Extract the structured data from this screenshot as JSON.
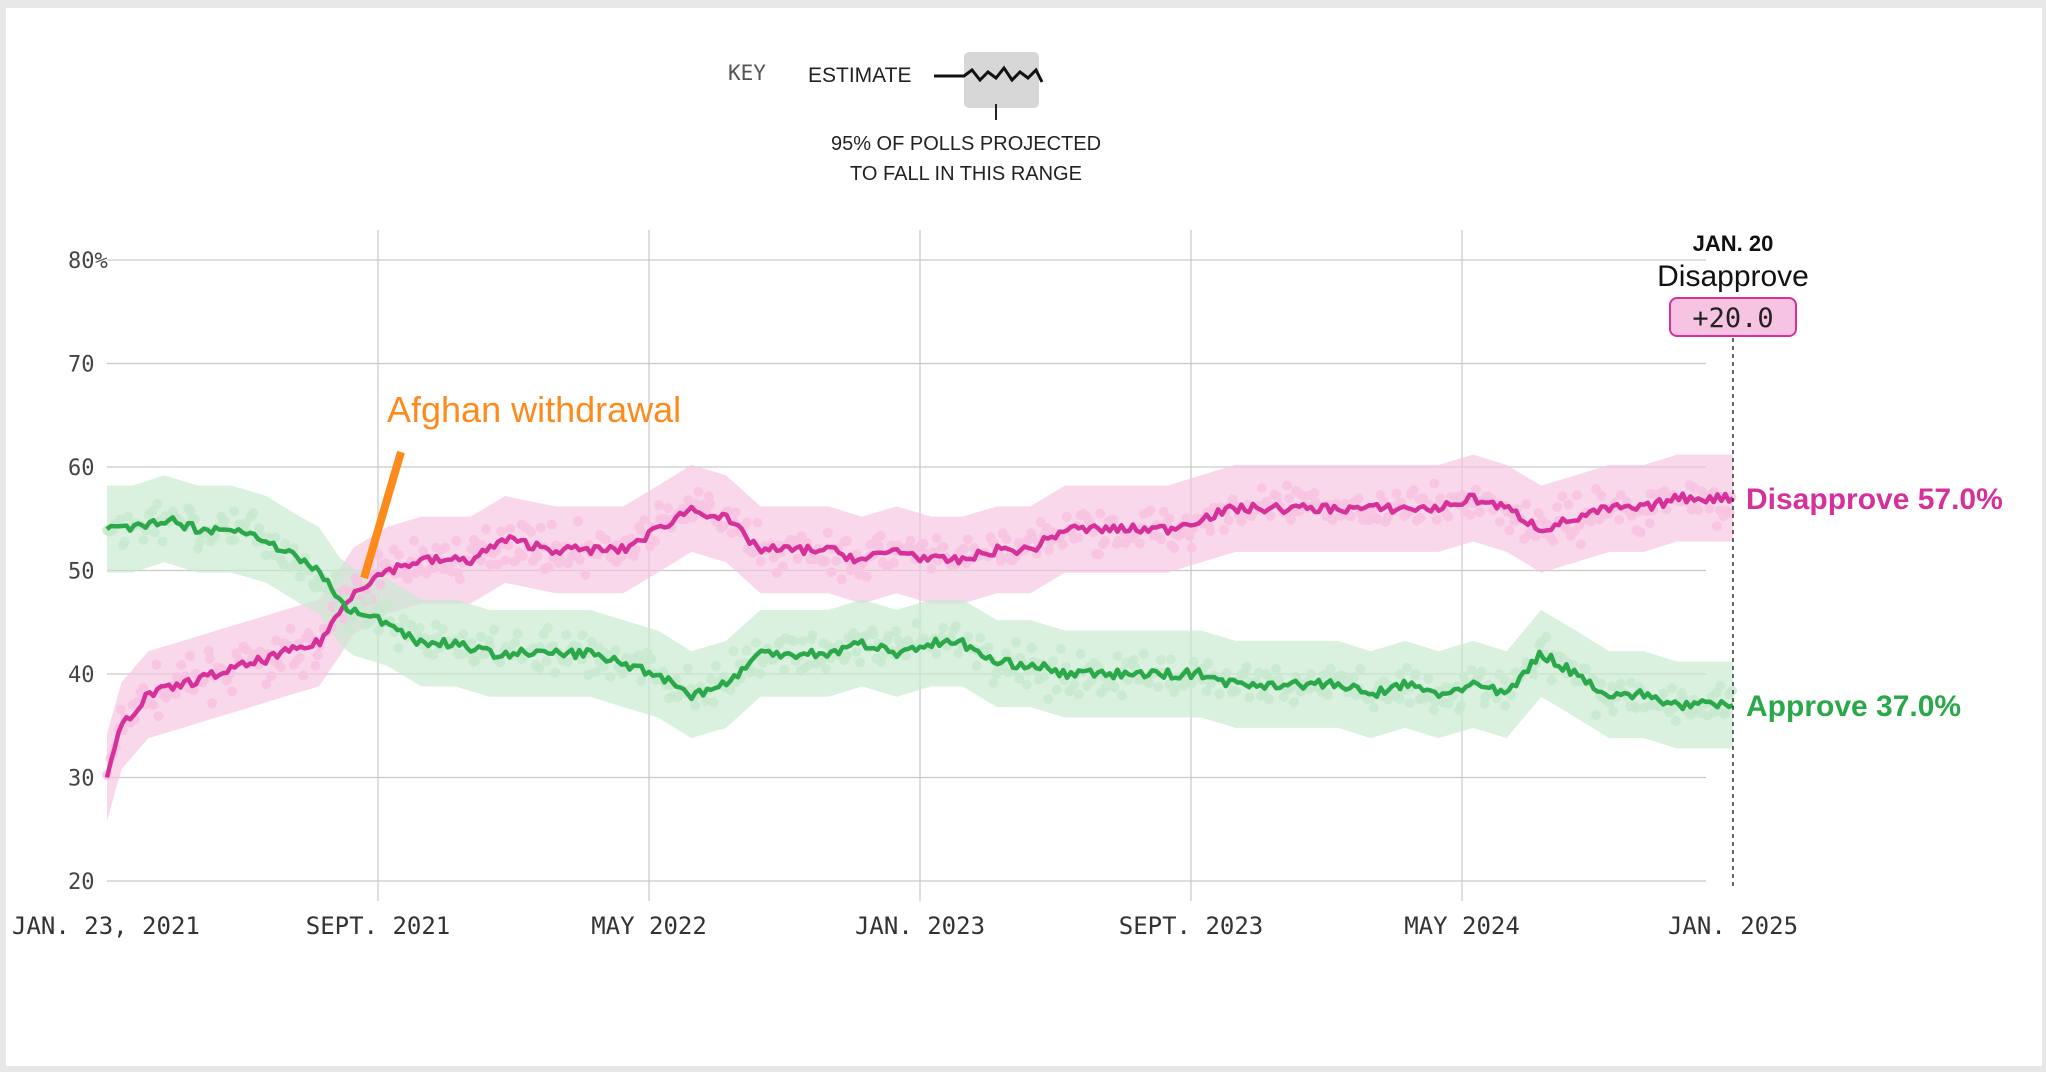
{
  "key": {
    "label": "KEY",
    "estimate_label": "ESTIMATE",
    "range_caption_line1": "95% OF POLLS PROJECTED",
    "range_caption_line2": "TO FALL IN THIS RANGE"
  },
  "marker": {
    "date_label": "JAN. 20",
    "series_label": "Disapprove",
    "margin_value": "+20.0"
  },
  "annotation": "Afghan withdrawal",
  "colors": {
    "approve": "#2aa84a",
    "approve_light": "#c8e9cf",
    "disapprove": "#d6309b",
    "disapprove_light": "#f7c3e2",
    "annotation": "#ff8a1c",
    "grid": "#c9c9c9"
  },
  "chart_data": {
    "type": "line",
    "y_ticks": [
      "80%",
      "70",
      "60",
      "50",
      "40",
      "30",
      "20"
    ],
    "x_ticks": [
      "JAN. 23, 2021",
      "SEPT. 2021",
      "MAY 2022",
      "JAN. 2023",
      "SEPT. 2023",
      "MAY 2024",
      "JAN. 2025"
    ],
    "ylim": [
      20,
      80
    ],
    "xlim": [
      "2021-01-23",
      "2025-01-20"
    ],
    "series": [
      {
        "name": "Disapprove",
        "end_label": "Disapprove 57.0%",
        "values": [
          [
            "2021-01-23",
            30
          ],
          [
            "2021-02-05",
            35
          ],
          [
            "2021-03-01",
            38
          ],
          [
            "2021-04-01",
            39
          ],
          [
            "2021-05-01",
            40
          ],
          [
            "2021-06-01",
            41
          ],
          [
            "2021-07-01",
            42
          ],
          [
            "2021-08-01",
            43
          ],
          [
            "2021-08-20",
            46
          ],
          [
            "2021-09-01",
            48
          ],
          [
            "2021-10-01",
            50
          ],
          [
            "2021-11-01",
            51
          ],
          [
            "2021-12-15",
            51
          ],
          [
            "2022-01-15",
            53
          ],
          [
            "2022-03-01",
            52
          ],
          [
            "2022-04-01",
            52
          ],
          [
            "2022-05-01",
            52
          ],
          [
            "2022-06-01",
            54
          ],
          [
            "2022-07-01",
            56
          ],
          [
            "2022-08-01",
            55
          ],
          [
            "2022-09-01",
            52
          ],
          [
            "2022-10-01",
            52
          ],
          [
            "2022-11-01",
            52
          ],
          [
            "2022-12-01",
            51
          ],
          [
            "2023-01-01",
            52
          ],
          [
            "2023-02-01",
            51
          ],
          [
            "2023-03-01",
            51
          ],
          [
            "2023-04-01",
            52
          ],
          [
            "2023-05-01",
            52
          ],
          [
            "2023-06-01",
            54
          ],
          [
            "2023-07-01",
            54
          ],
          [
            "2023-08-01",
            54
          ],
          [
            "2023-09-01",
            54
          ],
          [
            "2023-10-01",
            55
          ],
          [
            "2023-11-01",
            56
          ],
          [
            "2023-12-01",
            56
          ],
          [
            "2024-01-01",
            56
          ],
          [
            "2024-02-01",
            56
          ],
          [
            "2024-03-01",
            56
          ],
          [
            "2024-04-01",
            56
          ],
          [
            "2024-05-01",
            56
          ],
          [
            "2024-06-01",
            57
          ],
          [
            "2024-07-01",
            56
          ],
          [
            "2024-08-01",
            54
          ],
          [
            "2024-09-01",
            55
          ],
          [
            "2024-10-01",
            56
          ],
          [
            "2024-11-01",
            56
          ],
          [
            "2024-12-01",
            57
          ],
          [
            "2025-01-20",
            57
          ]
        ]
      },
      {
        "name": "Approve",
        "end_label": "Approve 37.0%",
        "values": [
          [
            "2021-01-23",
            54
          ],
          [
            "2021-02-15",
            54
          ],
          [
            "2021-03-15",
            55
          ],
          [
            "2021-04-15",
            54
          ],
          [
            "2021-05-15",
            54
          ],
          [
            "2021-06-15",
            53
          ],
          [
            "2021-07-15",
            51
          ],
          [
            "2021-08-01",
            50
          ],
          [
            "2021-08-20",
            47
          ],
          [
            "2021-09-01",
            46
          ],
          [
            "2021-10-01",
            45
          ],
          [
            "2021-11-01",
            43
          ],
          [
            "2021-12-01",
            43
          ],
          [
            "2022-01-01",
            42
          ],
          [
            "2022-02-01",
            42
          ],
          [
            "2022-03-01",
            42
          ],
          [
            "2022-04-01",
            42
          ],
          [
            "2022-05-01",
            41
          ],
          [
            "2022-06-01",
            40
          ],
          [
            "2022-07-01",
            38
          ],
          [
            "2022-08-01",
            39
          ],
          [
            "2022-09-01",
            42
          ],
          [
            "2022-10-01",
            42
          ],
          [
            "2022-11-01",
            42
          ],
          [
            "2022-12-01",
            43
          ],
          [
            "2023-01-01",
            42
          ],
          [
            "2023-02-01",
            43
          ],
          [
            "2023-03-01",
            43
          ],
          [
            "2023-04-01",
            41
          ],
          [
            "2023-05-01",
            41
          ],
          [
            "2023-06-01",
            40
          ],
          [
            "2023-07-01",
            40
          ],
          [
            "2023-08-01",
            40
          ],
          [
            "2023-09-01",
            40
          ],
          [
            "2023-10-01",
            40
          ],
          [
            "2023-11-01",
            39
          ],
          [
            "2023-12-01",
            39
          ],
          [
            "2024-01-01",
            39
          ],
          [
            "2024-02-01",
            39
          ],
          [
            "2024-03-01",
            38
          ],
          [
            "2024-04-01",
            39
          ],
          [
            "2024-05-01",
            38
          ],
          [
            "2024-06-01",
            39
          ],
          [
            "2024-07-01",
            38
          ],
          [
            "2024-08-01",
            42
          ],
          [
            "2024-09-01",
            40
          ],
          [
            "2024-10-01",
            38
          ],
          [
            "2024-11-01",
            38
          ],
          [
            "2024-12-01",
            37
          ],
          [
            "2025-01-20",
            37
          ]
        ]
      }
    ]
  }
}
